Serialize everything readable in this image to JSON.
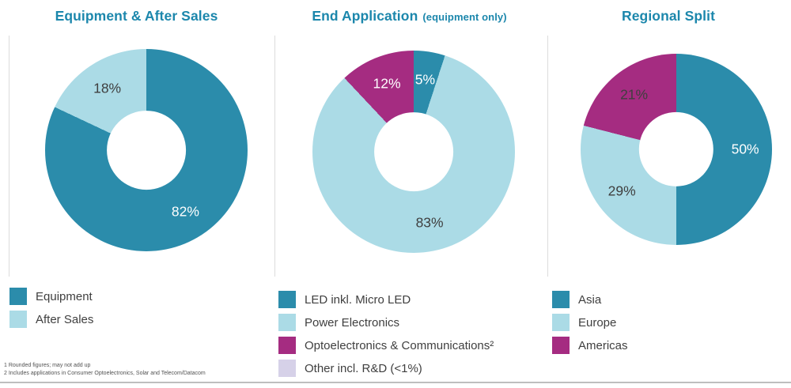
{
  "chart_data": [
    {
      "type": "donut",
      "title": "Equipment & After Sales",
      "title_suffix": "",
      "slices": [
        {
          "label": "Equipment",
          "value": 82,
          "display": "82%",
          "color": "#2B8CAB",
          "label_color": "#FFFFFF"
        },
        {
          "label": "After Sales",
          "value": 18,
          "display": "18%",
          "color": "#ABDBE6",
          "label_color": "#3F3F3F"
        }
      ],
      "legend": [
        {
          "label": "Equipment",
          "color": "#2B8CAB"
        },
        {
          "label": "After Sales",
          "color": "#ABDBE6"
        }
      ]
    },
    {
      "type": "donut",
      "title": "End Application",
      "title_suffix": "(equipment only)",
      "slices": [
        {
          "label": "LED inkl. Micro LED",
          "value": 5,
          "display": "5%",
          "color": "#2B8CAB",
          "label_color": "#FFFFFF"
        },
        {
          "label": "Power Electronics",
          "value": 83,
          "display": "83%",
          "color": "#ABDBE6",
          "label_color": "#3F3F3F"
        },
        {
          "label": "Optoelectronics & Communications²",
          "value": 12,
          "display": "12%",
          "color": "#A52C81",
          "label_color": "#FFFFFF"
        },
        {
          "label": "Other incl. R&D (<1%)",
          "value": 0,
          "display": "",
          "color": "#D6D1E8",
          "label_color": "#3F3F3F"
        }
      ],
      "legend": [
        {
          "label": "LED inkl. Micro LED",
          "color": "#2B8CAB"
        },
        {
          "label": "Power Electronics",
          "color": "#ABDBE6"
        },
        {
          "label": "Optoelectronics & Communications²",
          "color": "#A52C81"
        },
        {
          "label": "Other incl. R&D (<1%)",
          "color": "#D6D1E8"
        }
      ]
    },
    {
      "type": "donut",
      "title": "Regional Split",
      "title_suffix": "",
      "slices": [
        {
          "label": "Asia",
          "value": 50,
          "display": "50%",
          "color": "#2B8CAB",
          "label_color": "#FFFFFF"
        },
        {
          "label": "Europe",
          "value": 29,
          "display": "29%",
          "color": "#ABDBE6",
          "label_color": "#3F3F3F"
        },
        {
          "label": "Americas",
          "value": 21,
          "display": "21%",
          "color": "#A52C81",
          "label_color": "#3F3F3F"
        }
      ],
      "legend": [
        {
          "label": "Asia",
          "color": "#2B8CAB"
        },
        {
          "label": "Europe",
          "color": "#ABDBE6"
        },
        {
          "label": "Americas",
          "color": "#A52C81"
        }
      ]
    }
  ],
  "footnotes": [
    "1 Rounded figures; may not add up",
    "2 Includes applications in Consumer Optoelectronics, Solar and Telecom/Datacom"
  ]
}
